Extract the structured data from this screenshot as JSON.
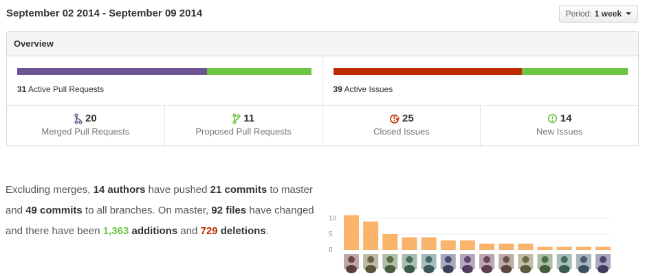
{
  "header": {
    "date_range": "September 02 2014 - September 09 2014",
    "period_label": "Period:",
    "period_value": "1 week"
  },
  "overview": {
    "title": "Overview",
    "pull_requests_bar": {
      "merged": 20,
      "proposed": 11,
      "count": "31",
      "label": "Active Pull Requests",
      "colors": [
        "#6e5494",
        "#6cc644"
      ]
    },
    "issues_bar": {
      "closed": 25,
      "new": 14,
      "count": "39",
      "label": "Active Issues",
      "colors": [
        "#bd2c00",
        "#6cc644"
      ]
    },
    "stats": [
      {
        "icon": "merge-icon",
        "value": "20",
        "label": "Merged Pull Requests",
        "color": "#6e5494"
      },
      {
        "icon": "branch-icon",
        "value": "11",
        "label": "Proposed Pull Requests",
        "color": "#6cc644"
      },
      {
        "icon": "issue-closed-icon",
        "value": "25",
        "label": "Closed Issues",
        "color": "#bd2c00"
      },
      {
        "icon": "issue-opened-icon",
        "value": "14",
        "label": "New Issues",
        "color": "#6cc644"
      }
    ]
  },
  "summary": {
    "p1": "Excluding merges, ",
    "authors": "14 authors",
    "p2": " have pushed ",
    "commits_master": "21 commits",
    "p3": " to master and ",
    "commits_all": "49 commits",
    "p4": " to all branches. On master, ",
    "files": "92 files",
    "p5": " have changed and there have been ",
    "additions_num": "1,363",
    "additions_word": " additions",
    "p6": " and ",
    "deletions_num": "729",
    "deletions_word": "deletions",
    "p7": "."
  },
  "chart_data": {
    "type": "bar",
    "categories": [
      "author-1",
      "author-2",
      "author-3",
      "author-4",
      "author-5",
      "author-6",
      "author-7",
      "author-8",
      "author-9",
      "author-10",
      "author-11",
      "author-12",
      "author-13",
      "author-14"
    ],
    "values": [
      11,
      9,
      5,
      4,
      4,
      3,
      3,
      2,
      2,
      2,
      1,
      1,
      1,
      1
    ],
    "yticks": [
      "10",
      "5",
      "0"
    ],
    "ylim": [
      0,
      12
    ],
    "bar_color": "#fbb46c",
    "grid": true
  }
}
